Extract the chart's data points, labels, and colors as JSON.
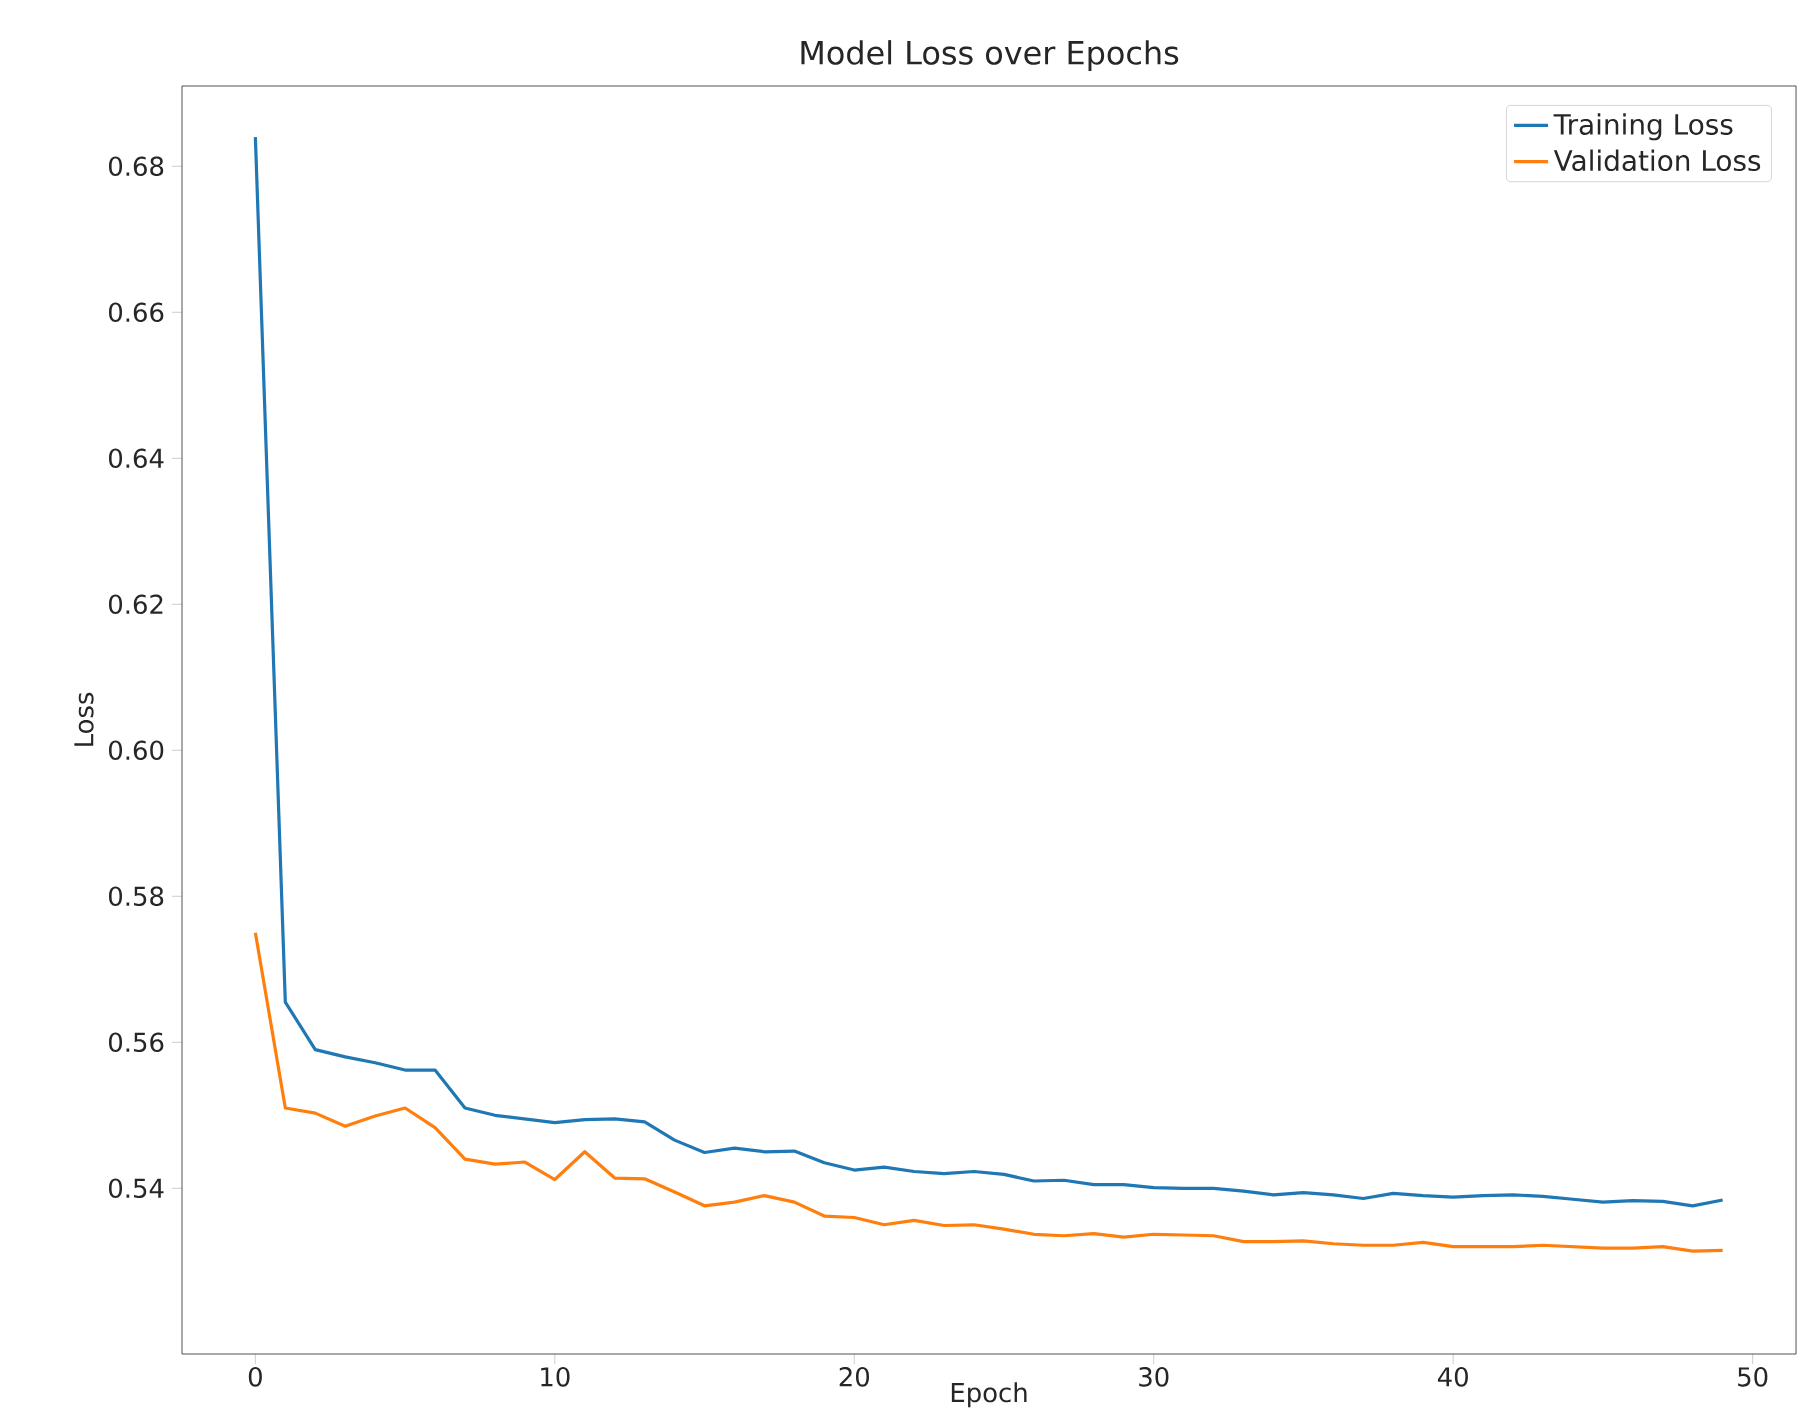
{
  "chart_data": {
    "type": "line",
    "title": "Model Loss over Epochs",
    "xlabel": "Epoch",
    "ylabel": "Loss",
    "x": [
      0,
      1,
      2,
      3,
      4,
      5,
      6,
      7,
      8,
      9,
      10,
      11,
      12,
      13,
      14,
      15,
      16,
      17,
      18,
      19,
      20,
      21,
      22,
      23,
      24,
      25,
      26,
      27,
      28,
      29,
      30,
      31,
      32,
      33,
      34,
      35,
      36,
      37,
      38,
      39,
      40,
      41,
      42,
      43,
      44,
      45,
      46,
      47,
      48,
      49
    ],
    "series": [
      {
        "name": "Training Loss",
        "color": "#1f77b4",
        "values": [
          0.684,
          0.5655,
          0.559,
          0.558,
          0.5572,
          0.5562,
          0.5562,
          0.551,
          0.55,
          0.5495,
          0.549,
          0.5494,
          0.5495,
          0.5491,
          0.5466,
          0.5449,
          0.5455,
          0.545,
          0.5451,
          0.5435,
          0.5425,
          0.5429,
          0.5423,
          0.542,
          0.5423,
          0.5419,
          0.541,
          0.5411,
          0.5405,
          0.5405,
          0.5401,
          0.54,
          0.54,
          0.5396,
          0.5391,
          0.5394,
          0.5391,
          0.5386,
          0.5393,
          0.539,
          0.5388,
          0.539,
          0.5391,
          0.5389,
          0.5385,
          0.5381,
          0.5383,
          0.5382,
          0.5376,
          0.5384
        ]
      },
      {
        "name": "Validation Loss",
        "color": "#ff7f0e",
        "values": [
          0.575,
          0.551,
          0.5503,
          0.5485,
          0.5499,
          0.551,
          0.5483,
          0.544,
          0.5433,
          0.5436,
          0.5412,
          0.545,
          0.5414,
          0.5413,
          0.5395,
          0.5376,
          0.5381,
          0.539,
          0.5381,
          0.5362,
          0.536,
          0.535,
          0.5356,
          0.5349,
          0.535,
          0.5344,
          0.5337,
          0.5335,
          0.5338,
          0.5333,
          0.5337,
          0.5336,
          0.5335,
          0.5327,
          0.5327,
          0.5328,
          0.5324,
          0.5322,
          0.5322,
          0.5326,
          0.532,
          0.532,
          0.532,
          0.5322,
          0.532,
          0.5318,
          0.5318,
          0.532,
          0.5314,
          0.5315
        ]
      }
    ],
    "xlim": [
      -2.45,
      51.45
    ],
    "ylim": [
      0.5173,
      0.691
    ],
    "xticks": [
      0,
      10,
      20,
      30,
      40,
      50
    ],
    "yticks": [
      {
        "value": 0.54,
        "label": "0.54"
      },
      {
        "value": 0.56,
        "label": "0.56"
      },
      {
        "value": 0.58,
        "label": "0.58"
      },
      {
        "value": 0.6,
        "label": "0.60"
      },
      {
        "value": 0.62,
        "label": "0.62"
      },
      {
        "value": 0.64,
        "label": "0.64"
      },
      {
        "value": 0.66,
        "label": "0.66"
      },
      {
        "value": 0.68,
        "label": "0.68"
      }
    ],
    "grid": false,
    "legend": "top right",
    "line_style": "solid"
  }
}
